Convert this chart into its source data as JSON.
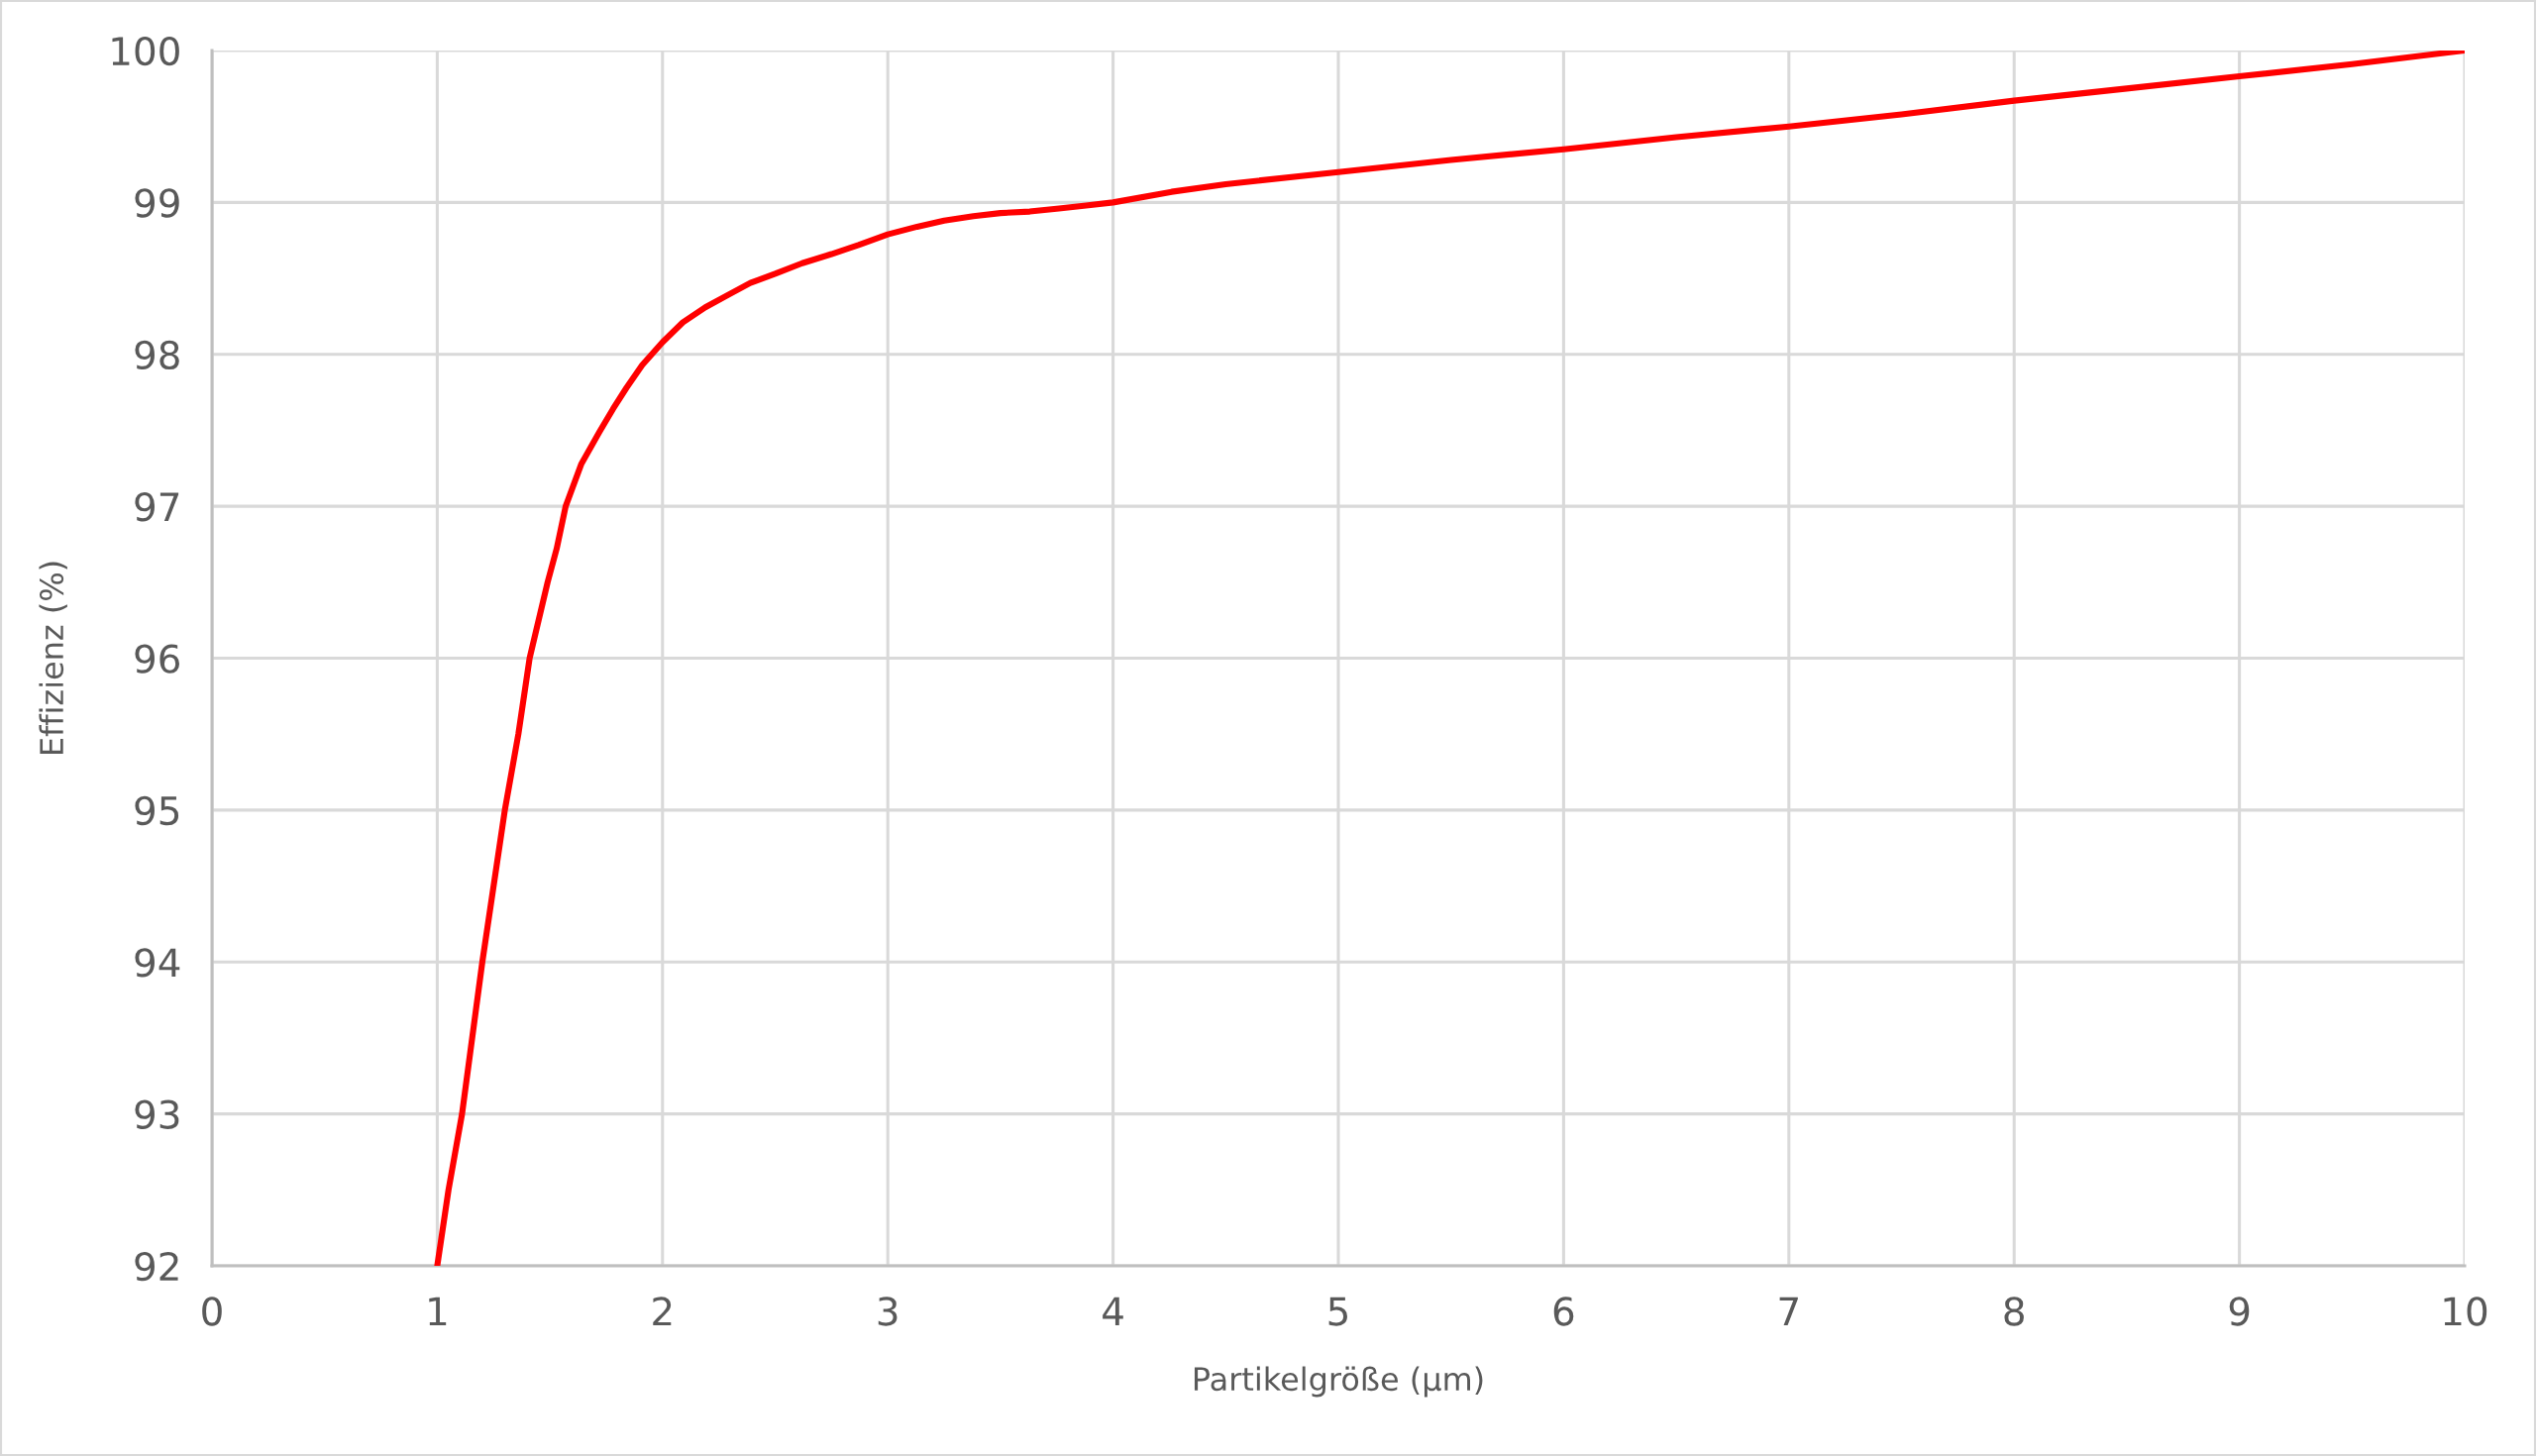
{
  "chart_data": {
    "type": "line",
    "xlabel": "Partikelgröße (µm)",
    "ylabel": "Effizienz (%)",
    "x": [
      1,
      1.05,
      1.11,
      1.2,
      1.3,
      1.36,
      1.41,
      1.49,
      1.53,
      1.57,
      1.64,
      1.72,
      1.78,
      1.84,
      1.91,
      2.0,
      2.09,
      2.19,
      2.29,
      2.39,
      2.5,
      2.62,
      2.75,
      2.87,
      3.0,
      3.13,
      3.25,
      3.38,
      3.5,
      3.63,
      3.76,
      3.88,
      4.0,
      4.26,
      4.5,
      5.0,
      5.5,
      6.0,
      6.5,
      7.0,
      7.5,
      8.0,
      8.5,
      9.0,
      9.5,
      10.0
    ],
    "series": [
      {
        "color": "#ff0000",
        "values": [
          92,
          92.5,
          93,
          94,
          95,
          95.5,
          96,
          96.5,
          96.72,
          97,
          97.28,
          97.49,
          97.64,
          97.78,
          97.93,
          98.08,
          98.21,
          98.31,
          98.39,
          98.47,
          98.53,
          98.6,
          98.66,
          98.72,
          98.79,
          98.84,
          98.88,
          98.91,
          98.93,
          98.94,
          98.96,
          98.98,
          99.0,
          99.07,
          99.12,
          99.2,
          99.28,
          99.35,
          99.43,
          99.5,
          99.58,
          99.67,
          99.75,
          99.83,
          99.91,
          100
        ]
      }
    ],
    "xlim": [
      0,
      10
    ],
    "ylim": [
      92,
      100
    ],
    "xticks": [
      0,
      1,
      2,
      3,
      4,
      5,
      6,
      7,
      8,
      9,
      10
    ],
    "yticks": [
      92,
      93,
      94,
      95,
      96,
      97,
      98,
      99,
      100
    ],
    "grid": true,
    "line_style": "solid"
  }
}
